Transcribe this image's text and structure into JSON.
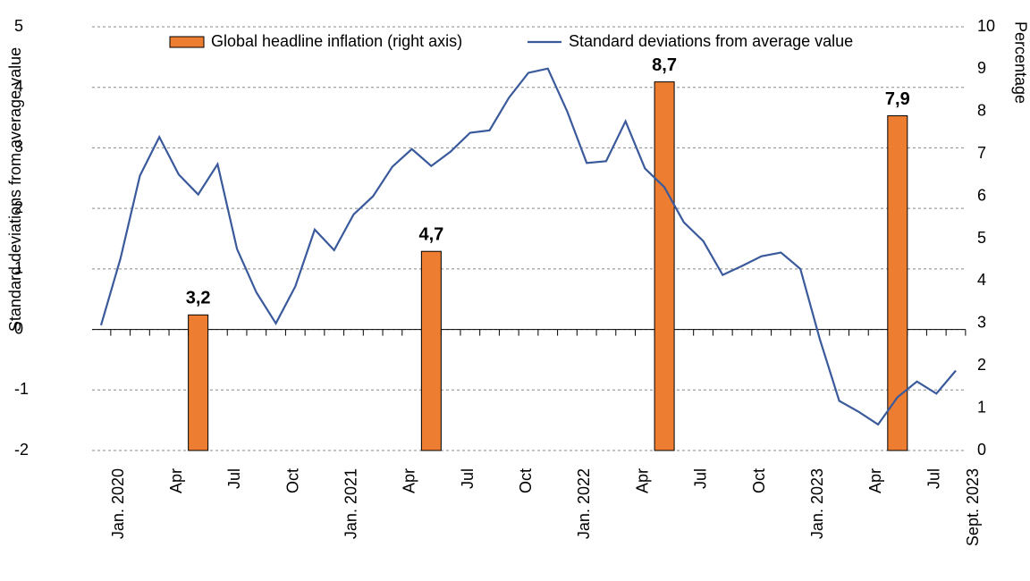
{
  "chart_data": {
    "type": "bar+line",
    "ylabel": "Standard deviations from average value",
    "y2label": "Percentage",
    "categories": [
      "Jan. 2020",
      null,
      null,
      "Apr",
      null,
      null,
      "Jul",
      null,
      null,
      "Oct",
      null,
      null,
      "Jan. 2021",
      null,
      null,
      "Apr",
      null,
      null,
      "Jul",
      null,
      null,
      "Oct",
      null,
      null,
      "Jan. 2022",
      null,
      null,
      "Apr",
      null,
      null,
      "Jul",
      null,
      null,
      "Oct",
      null,
      null,
      "Jan. 2023",
      null,
      null,
      "Apr",
      null,
      null,
      "Jul",
      null,
      "Sept. 2023"
    ],
    "series": [
      {
        "name": "Global headline inflation (right axis)",
        "type": "bar",
        "axis": "y2",
        "color": "#ed7d31",
        "values": [
          null,
          null,
          null,
          null,
          null,
          3.2,
          null,
          null,
          null,
          null,
          null,
          null,
          null,
          null,
          null,
          null,
          null,
          4.7,
          null,
          null,
          null,
          null,
          null,
          null,
          null,
          null,
          null,
          null,
          null,
          8.7,
          null,
          null,
          null,
          null,
          null,
          null,
          null,
          null,
          null,
          null,
          null,
          7.9,
          null,
          null,
          null
        ],
        "value_labels": [
          null,
          null,
          null,
          null,
          null,
          "3,2",
          null,
          null,
          null,
          null,
          null,
          null,
          null,
          null,
          null,
          null,
          null,
          "4,7",
          null,
          null,
          null,
          null,
          null,
          null,
          null,
          null,
          null,
          null,
          null,
          "8,7",
          null,
          null,
          null,
          null,
          null,
          null,
          null,
          null,
          null,
          null,
          null,
          "7,9",
          null,
          null,
          null
        ]
      },
      {
        "name": "Standard deviations from average value",
        "type": "line",
        "axis": "y",
        "color": "#3a5a9c",
        "values": [
          0.07,
          1.17,
          2.54,
          3.18,
          2.56,
          2.23,
          2.73,
          1.33,
          0.61,
          0.1,
          0.71,
          1.65,
          1.31,
          1.9,
          2.2,
          2.69,
          2.98,
          2.7,
          2.94,
          3.25,
          3.29,
          3.83,
          4.24,
          4.31,
          3.6,
          2.75,
          2.78,
          3.44,
          2.66,
          2.35,
          1.77,
          1.46,
          0.9,
          1.05,
          1.21,
          1.27,
          1.0,
          -0.16,
          -1.18,
          -1.36,
          -1.57,
          -1.12,
          -0.86,
          -1.06,
          -0.68
        ]
      }
    ],
    "ylim": [
      -2,
      5
    ],
    "yticks": [
      -2,
      -1,
      0,
      1,
      2,
      3,
      4,
      5
    ],
    "y2lim": [
      0,
      10
    ],
    "y2ticks": [
      0,
      1,
      2,
      3,
      4,
      5,
      6,
      7,
      8,
      9,
      10
    ],
    "grid": true,
    "legend": "top"
  }
}
